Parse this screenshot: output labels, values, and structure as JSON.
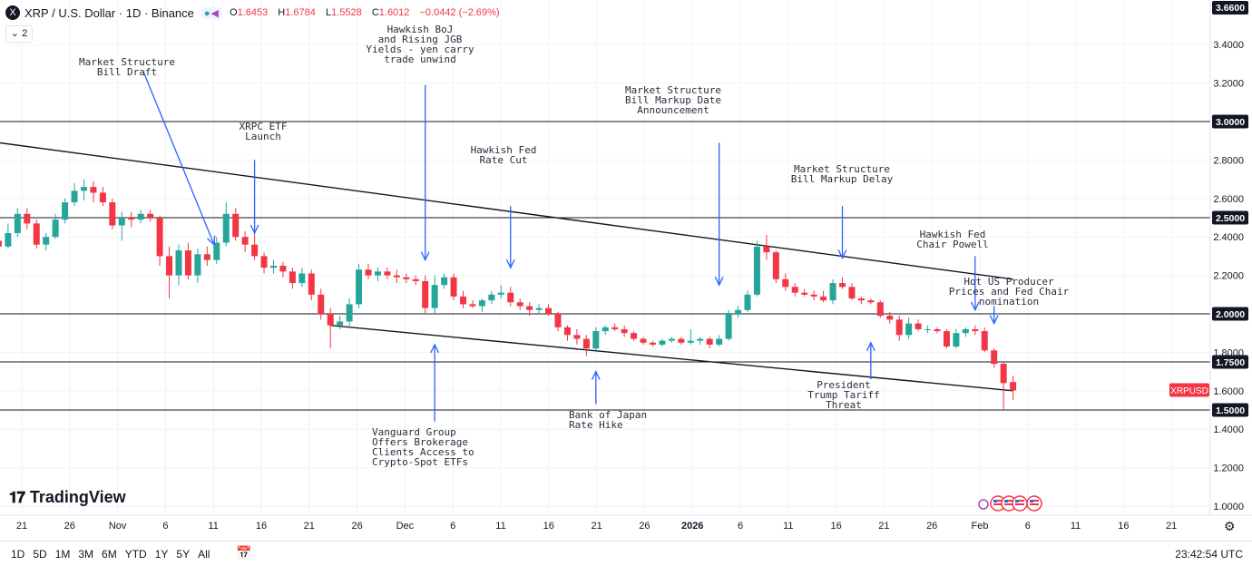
{
  "header": {
    "symbol_logo": "X",
    "title": "XRP / U.S. Dollar · 1D · Binance",
    "ohlc": {
      "o_label": "O",
      "o": "1.6453",
      "h_label": "H",
      "h": "1.6784",
      "l_label": "L",
      "l": "1.5528",
      "c_label": "C",
      "c": "1.6012",
      "change": "−0.0442 (−2.69%)"
    },
    "collapse": "2",
    "change_color": "#f23645"
  },
  "bottom_bar": {
    "ranges": [
      "1D",
      "5D",
      "1M",
      "3M",
      "6M",
      "YTD",
      "1Y",
      "5Y",
      "All"
    ],
    "calendar_icon": "calendar-range-icon",
    "clock": "23:42:54 UTC"
  },
  "branding": {
    "name": "TradingView",
    "logo_icon": "tradingview-logo-icon"
  },
  "colors": {
    "up": "#26a69a",
    "down": "#f23645",
    "annotation": "#2962ff",
    "trendline": "#131722",
    "hline": "#131722"
  },
  "chart_data": {
    "type": "candlestick",
    "y_axis": {
      "ticks": [
        1.0,
        1.2,
        1.4,
        1.6,
        1.8,
        2.0,
        2.2,
        2.4,
        2.6,
        2.8,
        3.0,
        3.2,
        3.4
      ],
      "range": [
        0.97,
        3.66
      ],
      "top_label": "3.6600"
    },
    "x_axis": {
      "labels": [
        "21",
        "26",
        "Nov",
        "6",
        "11",
        "16",
        "21",
        "26",
        "Dec",
        "6",
        "11",
        "16",
        "21",
        "26",
        "2026",
        "6",
        "11",
        "16",
        "21",
        "26",
        "Feb",
        "6",
        "11",
        "16",
        "21"
      ],
      "bold_labels": [
        "2026"
      ]
    },
    "price_label": {
      "text": "XRPUSD",
      "value": 1.6012,
      "color": "#f23645"
    },
    "horizontal_levels": [
      {
        "value": 3.0,
        "label": "3.0000"
      },
      {
        "value": 2.5,
        "label": "2.5000"
      },
      {
        "value": 2.0,
        "label": "2.0000"
      },
      {
        "value": 1.75,
        "label": "1.7500"
      },
      {
        "value": 1.5,
        "label": "1.5000"
      }
    ],
    "trendlines": [
      {
        "from": {
          "date": "2025-10-11",
          "price": 2.93
        },
        "to": {
          "date": "2026-02-01",
          "price": 2.18
        }
      },
      {
        "from": {
          "date": "2025-11-21",
          "price": 1.94
        },
        "to": {
          "date": "2026-02-01",
          "price": 1.6
        }
      }
    ],
    "annotations": [
      {
        "text": "Market Structure\nBill Draft",
        "arrow_from": {
          "date": "2025-10-13",
          "price": 3.26
        },
        "arrow_to": {
          "date": "2025-11-09",
          "price": 2.36
        }
      },
      {
        "text": "XRPC ETF\nLaunch",
        "arrow_from": {
          "date": "2025-11-13",
          "price": 2.8
        },
        "arrow_to": {
          "date": "2025-11-13",
          "price": 2.42
        }
      },
      {
        "text": "Hawkish BoJ\nand Rising JGB\nYields - yen carry\ntrade unwind",
        "arrow_from": {
          "date": "2025-12-01",
          "price": 3.19
        },
        "arrow_to": {
          "date": "2025-12-01",
          "price": 2.28
        }
      },
      {
        "text": "Market Structure\nBill Markup Date\nAnnouncement",
        "arrow_from": {
          "date": "2026-01-01",
          "price": 2.89
        },
        "arrow_to": {
          "date": "2026-01-01",
          "price": 2.15
        }
      },
      {
        "text": "Hawkish Fed\nRate Cut",
        "arrow_from": {
          "date": "2025-12-10",
          "price": 2.56
        },
        "arrow_to": {
          "date": "2025-12-10",
          "price": 2.24
        }
      },
      {
        "text": "Market Structure\nBill Markup Delay",
        "arrow_from": {
          "date": "2026-01-14",
          "price": 2.56
        },
        "arrow_to": {
          "date": "2026-01-14",
          "price": 2.29
        }
      },
      {
        "text": "Hawkish Fed\nChair Powell",
        "arrow_from": {
          "date": "2026-01-28",
          "price": 2.3
        },
        "arrow_to": {
          "date": "2026-01-28",
          "price": 2.02
        }
      },
      {
        "text": "Hot US Producer\nPrices and Fed Chair\nnomination",
        "arrow_from": {
          "date": "2026-01-30",
          "price": 2.04
        },
        "arrow_to": {
          "date": "2026-01-30",
          "price": 1.95
        }
      },
      {
        "text": "Vanguard Group\nOffers Brokerage\nClients Access to\nCrypto-Spot ETFs",
        "arrow_from": {
          "date": "2025-12-02",
          "price": 1.44
        },
        "arrow_to": {
          "date": "2025-12-02",
          "price": 1.84
        }
      },
      {
        "text": "Bank of Japan\nRate Hike",
        "arrow_from": {
          "date": "2025-12-19",
          "price": 1.53
        },
        "arrow_to": {
          "date": "2025-12-19",
          "price": 1.7
        }
      },
      {
        "text": "President\nTrump Tariff\nThreat",
        "arrow_from": {
          "date": "2026-01-17",
          "price": 1.66
        },
        "arrow_to": {
          "date": "2026-01-17",
          "price": 1.85
        }
      }
    ],
    "candles": [
      {
        "d": "2025-10-17",
        "o": 2.38,
        "h": 2.42,
        "l": 2.33,
        "c": 2.35
      },
      {
        "d": "2025-10-18",
        "o": 2.35,
        "h": 2.47,
        "l": 2.34,
        "c": 2.42
      },
      {
        "d": "2025-10-19",
        "o": 2.42,
        "h": 2.55,
        "l": 2.4,
        "c": 2.52
      },
      {
        "d": "2025-10-20",
        "o": 2.52,
        "h": 2.55,
        "l": 2.44,
        "c": 2.47
      },
      {
        "d": "2025-10-21",
        "o": 2.47,
        "h": 2.49,
        "l": 2.34,
        "c": 2.36
      },
      {
        "d": "2025-10-22",
        "o": 2.36,
        "h": 2.42,
        "l": 2.33,
        "c": 2.4
      },
      {
        "d": "2025-10-23",
        "o": 2.4,
        "h": 2.52,
        "l": 2.39,
        "c": 2.49
      },
      {
        "d": "2025-10-24",
        "o": 2.49,
        "h": 2.6,
        "l": 2.47,
        "c": 2.58
      },
      {
        "d": "2025-10-25",
        "o": 2.58,
        "h": 2.68,
        "l": 2.56,
        "c": 2.64
      },
      {
        "d": "2025-10-26",
        "o": 2.64,
        "h": 2.7,
        "l": 2.59,
        "c": 2.66
      },
      {
        "d": "2025-10-27",
        "o": 2.66,
        "h": 2.69,
        "l": 2.58,
        "c": 2.63
      },
      {
        "d": "2025-10-28",
        "o": 2.63,
        "h": 2.66,
        "l": 2.56,
        "c": 2.58
      },
      {
        "d": "2025-10-29",
        "o": 2.58,
        "h": 2.6,
        "l": 2.44,
        "c": 2.46
      },
      {
        "d": "2025-10-30",
        "o": 2.46,
        "h": 2.53,
        "l": 2.38,
        "c": 2.5
      },
      {
        "d": "2025-10-31",
        "o": 2.5,
        "h": 2.53,
        "l": 2.45,
        "c": 2.49
      },
      {
        "d": "2025-11-01",
        "o": 2.49,
        "h": 2.54,
        "l": 2.47,
        "c": 2.52
      },
      {
        "d": "2025-11-02",
        "o": 2.52,
        "h": 2.54,
        "l": 2.48,
        "c": 2.5
      },
      {
        "d": "2025-11-03",
        "o": 2.5,
        "h": 2.51,
        "l": 2.25,
        "c": 2.3
      },
      {
        "d": "2025-11-04",
        "o": 2.3,
        "h": 2.35,
        "l": 2.08,
        "c": 2.2
      },
      {
        "d": "2025-11-05",
        "o": 2.2,
        "h": 2.36,
        "l": 2.15,
        "c": 2.33
      },
      {
        "d": "2025-11-06",
        "o": 2.33,
        "h": 2.37,
        "l": 2.18,
        "c": 2.2
      },
      {
        "d": "2025-11-07",
        "o": 2.2,
        "h": 2.34,
        "l": 2.16,
        "c": 2.31
      },
      {
        "d": "2025-11-08",
        "o": 2.31,
        "h": 2.35,
        "l": 2.25,
        "c": 2.28
      },
      {
        "d": "2025-11-09",
        "o": 2.28,
        "h": 2.4,
        "l": 2.26,
        "c": 2.37
      },
      {
        "d": "2025-11-10",
        "o": 2.37,
        "h": 2.58,
        "l": 2.35,
        "c": 2.52
      },
      {
        "d": "2025-11-11",
        "o": 2.52,
        "h": 2.55,
        "l": 2.38,
        "c": 2.4
      },
      {
        "d": "2025-11-12",
        "o": 2.4,
        "h": 2.43,
        "l": 2.32,
        "c": 2.36
      },
      {
        "d": "2025-11-13",
        "o": 2.36,
        "h": 2.42,
        "l": 2.28,
        "c": 2.3
      },
      {
        "d": "2025-11-14",
        "o": 2.3,
        "h": 2.32,
        "l": 2.21,
        "c": 2.24
      },
      {
        "d": "2025-11-15",
        "o": 2.24,
        "h": 2.28,
        "l": 2.21,
        "c": 2.25
      },
      {
        "d": "2025-11-16",
        "o": 2.25,
        "h": 2.27,
        "l": 2.19,
        "c": 2.22
      },
      {
        "d": "2025-11-17",
        "o": 2.22,
        "h": 2.24,
        "l": 2.13,
        "c": 2.16
      },
      {
        "d": "2025-11-18",
        "o": 2.16,
        "h": 2.24,
        "l": 2.14,
        "c": 2.21
      },
      {
        "d": "2025-11-19",
        "o": 2.21,
        "h": 2.23,
        "l": 2.07,
        "c": 2.1
      },
      {
        "d": "2025-11-20",
        "o": 2.1,
        "h": 2.13,
        "l": 1.97,
        "c": 2.0
      },
      {
        "d": "2025-11-21",
        "o": 2.0,
        "h": 2.03,
        "l": 1.82,
        "c": 1.94
      },
      {
        "d": "2025-11-22",
        "o": 1.94,
        "h": 1.99,
        "l": 1.92,
        "c": 1.96
      },
      {
        "d": "2025-11-23",
        "o": 1.96,
        "h": 2.08,
        "l": 1.93,
        "c": 2.05
      },
      {
        "d": "2025-11-24",
        "o": 2.05,
        "h": 2.26,
        "l": 2.03,
        "c": 2.23
      },
      {
        "d": "2025-11-25",
        "o": 2.23,
        "h": 2.26,
        "l": 2.18,
        "c": 2.2
      },
      {
        "d": "2025-11-26",
        "o": 2.2,
        "h": 2.24,
        "l": 2.17,
        "c": 2.22
      },
      {
        "d": "2025-11-27",
        "o": 2.22,
        "h": 2.24,
        "l": 2.18,
        "c": 2.2
      },
      {
        "d": "2025-11-28",
        "o": 2.2,
        "h": 2.23,
        "l": 2.16,
        "c": 2.19
      },
      {
        "d": "2025-11-29",
        "o": 2.19,
        "h": 2.21,
        "l": 2.16,
        "c": 2.18
      },
      {
        "d": "2025-11-30",
        "o": 2.18,
        "h": 2.2,
        "l": 2.15,
        "c": 2.17
      },
      {
        "d": "2025-12-01",
        "o": 2.17,
        "h": 2.2,
        "l": 2.0,
        "c": 2.03
      },
      {
        "d": "2025-12-02",
        "o": 2.03,
        "h": 2.2,
        "l": 2.0,
        "c": 2.15
      },
      {
        "d": "2025-12-03",
        "o": 2.15,
        "h": 2.21,
        "l": 2.13,
        "c": 2.19
      },
      {
        "d": "2025-12-04",
        "o": 2.19,
        "h": 2.21,
        "l": 2.07,
        "c": 2.09
      },
      {
        "d": "2025-12-05",
        "o": 2.09,
        "h": 2.12,
        "l": 2.03,
        "c": 2.05
      },
      {
        "d": "2025-12-06",
        "o": 2.05,
        "h": 2.07,
        "l": 2.03,
        "c": 2.04
      },
      {
        "d": "2025-12-07",
        "o": 2.04,
        "h": 2.08,
        "l": 2.01,
        "c": 2.07
      },
      {
        "d": "2025-12-08",
        "o": 2.07,
        "h": 2.12,
        "l": 2.05,
        "c": 2.1
      },
      {
        "d": "2025-12-09",
        "o": 2.1,
        "h": 2.15,
        "l": 2.08,
        "c": 2.11
      },
      {
        "d": "2025-12-10",
        "o": 2.11,
        "h": 2.14,
        "l": 2.04,
        "c": 2.06
      },
      {
        "d": "2025-12-11",
        "o": 2.06,
        "h": 2.08,
        "l": 2.02,
        "c": 2.04
      },
      {
        "d": "2025-12-12",
        "o": 2.04,
        "h": 2.06,
        "l": 1.99,
        "c": 2.02
      },
      {
        "d": "2025-12-13",
        "o": 2.02,
        "h": 2.05,
        "l": 2.0,
        "c": 2.03
      },
      {
        "d": "2025-12-14",
        "o": 2.03,
        "h": 2.05,
        "l": 1.99,
        "c": 2.0
      },
      {
        "d": "2025-12-15",
        "o": 2.0,
        "h": 2.01,
        "l": 1.91,
        "c": 1.93
      },
      {
        "d": "2025-12-16",
        "o": 1.93,
        "h": 1.94,
        "l": 1.86,
        "c": 1.89
      },
      {
        "d": "2025-12-17",
        "o": 1.89,
        "h": 1.92,
        "l": 1.84,
        "c": 1.87
      },
      {
        "d": "2025-12-18",
        "o": 1.87,
        "h": 1.89,
        "l": 1.78,
        "c": 1.82
      },
      {
        "d": "2025-12-19",
        "o": 1.82,
        "h": 1.93,
        "l": 1.81,
        "c": 1.91
      },
      {
        "d": "2025-12-20",
        "o": 1.91,
        "h": 1.94,
        "l": 1.89,
        "c": 1.93
      },
      {
        "d": "2025-12-21",
        "o": 1.93,
        "h": 1.95,
        "l": 1.91,
        "c": 1.92
      },
      {
        "d": "2025-12-22",
        "o": 1.92,
        "h": 1.94,
        "l": 1.88,
        "c": 1.9
      },
      {
        "d": "2025-12-23",
        "o": 1.9,
        "h": 1.91,
        "l": 1.86,
        "c": 1.87
      },
      {
        "d": "2025-12-24",
        "o": 1.87,
        "h": 1.88,
        "l": 1.84,
        "c": 1.85
      },
      {
        "d": "2025-12-25",
        "o": 1.85,
        "h": 1.86,
        "l": 1.83,
        "c": 1.84
      },
      {
        "d": "2025-12-26",
        "o": 1.84,
        "h": 1.87,
        "l": 1.83,
        "c": 1.86
      },
      {
        "d": "2025-12-27",
        "o": 1.86,
        "h": 1.88,
        "l": 1.85,
        "c": 1.87
      },
      {
        "d": "2025-12-28",
        "o": 1.87,
        "h": 1.88,
        "l": 1.84,
        "c": 1.85
      },
      {
        "d": "2025-12-29",
        "o": 1.85,
        "h": 1.92,
        "l": 1.84,
        "c": 1.86
      },
      {
        "d": "2025-12-30",
        "o": 1.86,
        "h": 1.88,
        "l": 1.84,
        "c": 1.87
      },
      {
        "d": "2025-12-31",
        "o": 1.87,
        "h": 1.88,
        "l": 1.82,
        "c": 1.84
      },
      {
        "d": "2026-01-01",
        "o": 1.84,
        "h": 1.89,
        "l": 1.83,
        "c": 1.87
      },
      {
        "d": "2026-01-02",
        "o": 1.87,
        "h": 2.02,
        "l": 1.86,
        "c": 2.0
      },
      {
        "d": "2026-01-03",
        "o": 2.0,
        "h": 2.04,
        "l": 1.98,
        "c": 2.02
      },
      {
        "d": "2026-01-04",
        "o": 2.02,
        "h": 2.12,
        "l": 2.01,
        "c": 2.1
      },
      {
        "d": "2026-01-05",
        "o": 2.1,
        "h": 2.38,
        "l": 2.09,
        "c": 2.35
      },
      {
        "d": "2026-01-06",
        "o": 2.35,
        "h": 2.41,
        "l": 2.28,
        "c": 2.32
      },
      {
        "d": "2026-01-07",
        "o": 2.32,
        "h": 2.33,
        "l": 2.16,
        "c": 2.18
      },
      {
        "d": "2026-01-08",
        "o": 2.18,
        "h": 2.21,
        "l": 2.12,
        "c": 2.14
      },
      {
        "d": "2026-01-09",
        "o": 2.14,
        "h": 2.16,
        "l": 2.09,
        "c": 2.11
      },
      {
        "d": "2026-01-10",
        "o": 2.11,
        "h": 2.13,
        "l": 2.09,
        "c": 2.1
      },
      {
        "d": "2026-01-11",
        "o": 2.1,
        "h": 2.12,
        "l": 2.07,
        "c": 2.09
      },
      {
        "d": "2026-01-12",
        "o": 2.09,
        "h": 2.12,
        "l": 2.06,
        "c": 2.07
      },
      {
        "d": "2026-01-13",
        "o": 2.07,
        "h": 2.18,
        "l": 2.05,
        "c": 2.16
      },
      {
        "d": "2026-01-14",
        "o": 2.16,
        "h": 2.19,
        "l": 2.13,
        "c": 2.14
      },
      {
        "d": "2026-01-15",
        "o": 2.14,
        "h": 2.16,
        "l": 2.07,
        "c": 2.08
      },
      {
        "d": "2026-01-16",
        "o": 2.08,
        "h": 2.09,
        "l": 2.05,
        "c": 2.07
      },
      {
        "d": "2026-01-17",
        "o": 2.07,
        "h": 2.08,
        "l": 2.05,
        "c": 2.06
      },
      {
        "d": "2026-01-18",
        "o": 2.06,
        "h": 2.07,
        "l": 1.98,
        "c": 1.99
      },
      {
        "d": "2026-01-19",
        "o": 1.99,
        "h": 2.01,
        "l": 1.95,
        "c": 1.97
      },
      {
        "d": "2026-01-20",
        "o": 1.97,
        "h": 1.99,
        "l": 1.86,
        "c": 1.89
      },
      {
        "d": "2026-01-21",
        "o": 1.89,
        "h": 1.98,
        "l": 1.87,
        "c": 1.95
      },
      {
        "d": "2026-01-22",
        "o": 1.95,
        "h": 1.97,
        "l": 1.91,
        "c": 1.92
      },
      {
        "d": "2026-01-23",
        "o": 1.92,
        "h": 1.94,
        "l": 1.9,
        "c": 1.92
      },
      {
        "d": "2026-01-24",
        "o": 1.92,
        "h": 1.93,
        "l": 1.9,
        "c": 1.91
      },
      {
        "d": "2026-01-25",
        "o": 1.91,
        "h": 1.92,
        "l": 1.82,
        "c": 1.83
      },
      {
        "d": "2026-01-26",
        "o": 1.83,
        "h": 1.92,
        "l": 1.82,
        "c": 1.9
      },
      {
        "d": "2026-01-27",
        "o": 1.9,
        "h": 1.93,
        "l": 1.88,
        "c": 1.92
      },
      {
        "d": "2026-01-28",
        "o": 1.92,
        "h": 1.94,
        "l": 1.89,
        "c": 1.91
      },
      {
        "d": "2026-01-29",
        "o": 1.91,
        "h": 1.93,
        "l": 1.8,
        "c": 1.81
      },
      {
        "d": "2026-01-30",
        "o": 1.81,
        "h": 1.82,
        "l": 1.72,
        "c": 1.74
      },
      {
        "d": "2026-01-31",
        "o": 1.74,
        "h": 1.75,
        "l": 1.5,
        "c": 1.64
      },
      {
        "d": "2026-02-01",
        "o": 1.6453,
        "h": 1.6784,
        "l": 1.5528,
        "c": 1.6012
      }
    ],
    "event_icons": [
      "event-flag-icon",
      "event-flag-icon",
      "event-flag-icon",
      "event-flag-icon"
    ]
  }
}
